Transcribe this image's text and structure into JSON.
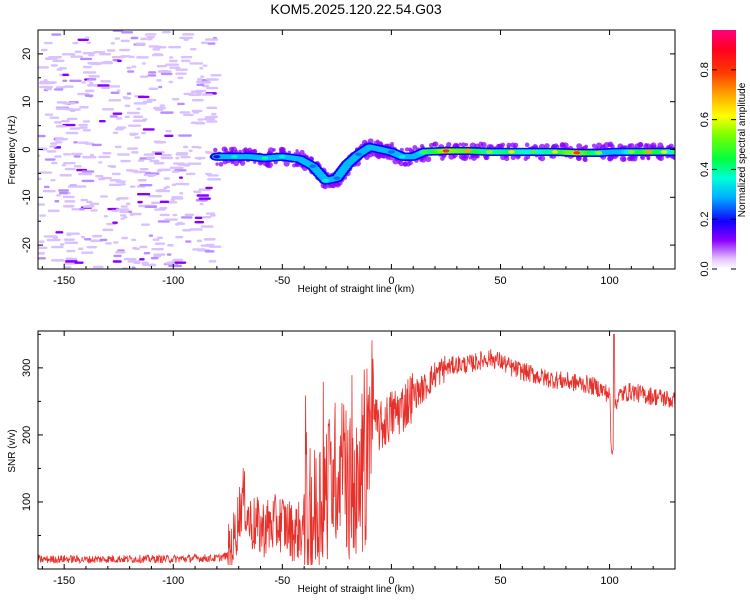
{
  "page_title": "KOM5.2025.120.22.54.G03",
  "chart_data": [
    {
      "type": "heatmap",
      "xlabel": "Height of straight line (km)",
      "ylabel": "Frequency (Hz)",
      "xlim": [
        -162,
        130
      ],
      "ylim": [
        -25,
        25
      ],
      "x_ticks": [
        -150,
        -100,
        -50,
        0,
        50,
        100
      ],
      "y_ticks": [
        -20,
        -10,
        0,
        10,
        20
      ],
      "colorbar": {
        "label": "Normalized spectral amplitude",
        "range": [
          0,
          0.96
        ],
        "ticks": [
          0.0,
          0.2,
          0.4,
          0.6,
          0.8
        ]
      },
      "signal_track": [
        {
          "x": -80,
          "f": -1.5,
          "amp": 0.2
        },
        {
          "x": -72,
          "f": -1.5,
          "amp": 0.35
        },
        {
          "x": -65,
          "f": -1.5,
          "amp": 0.3
        },
        {
          "x": -58,
          "f": -1.8,
          "amp": 0.4
        },
        {
          "x": -50,
          "f": -1.5,
          "amp": 0.35
        },
        {
          "x": -42,
          "f": -2.0,
          "amp": 0.3
        },
        {
          "x": -36,
          "f": -3.5,
          "amp": 0.25
        },
        {
          "x": -30,
          "f": -6.5,
          "amp": 0.35
        },
        {
          "x": -25,
          "f": -6.0,
          "amp": 0.25
        },
        {
          "x": -20,
          "f": -3.0,
          "amp": 0.3
        },
        {
          "x": -15,
          "f": -1.0,
          "amp": 0.25
        },
        {
          "x": -10,
          "f": 0.5,
          "amp": 0.3
        },
        {
          "x": -5,
          "f": 0.0,
          "amp": 0.3
        },
        {
          "x": 0,
          "f": -0.5,
          "amp": 0.25
        },
        {
          "x": 5,
          "f": -1.5,
          "amp": 0.35
        },
        {
          "x": 10,
          "f": -1.5,
          "amp": 0.3
        },
        {
          "x": 15,
          "f": -0.5,
          "amp": 0.5
        },
        {
          "x": 25,
          "f": -0.3,
          "amp": 0.8
        },
        {
          "x": 35,
          "f": -0.3,
          "amp": 0.7
        },
        {
          "x": 45,
          "f": -0.5,
          "amp": 0.55
        },
        {
          "x": 55,
          "f": -0.5,
          "amp": 0.6
        },
        {
          "x": 65,
          "f": -0.5,
          "amp": 0.5
        },
        {
          "x": 75,
          "f": -0.5,
          "amp": 0.6
        },
        {
          "x": 85,
          "f": -0.7,
          "amp": 0.8
        },
        {
          "x": 95,
          "f": -0.7,
          "amp": 0.55
        },
        {
          "x": 102,
          "f": -0.5,
          "amp": 0.3
        },
        {
          "x": 110,
          "f": -0.5,
          "amp": 0.55
        },
        {
          "x": 118,
          "f": -0.5,
          "amp": 0.7
        },
        {
          "x": 125,
          "f": -0.5,
          "amp": 0.6
        },
        {
          "x": 130,
          "f": -0.5,
          "amp": 0.5
        }
      ],
      "noise_region": {
        "x_range": [
          -162,
          -80
        ],
        "f_range": [
          -25,
          25
        ],
        "amp": 0.05
      }
    },
    {
      "type": "line",
      "xlabel": "Height of straight line (km)",
      "ylabel": "SNR (v/v)",
      "xlim": [
        -162,
        130
      ],
      "ylim": [
        0,
        355
      ],
      "x_ticks": [
        -150,
        -100,
        -50,
        0,
        50,
        100
      ],
      "y_ticks": [
        100,
        200,
        300
      ],
      "line_color": "#e8302a",
      "x": [
        -162,
        -150,
        -140,
        -130,
        -120,
        -110,
        -100,
        -90,
        -80,
        -75,
        -72,
        -70,
        -68,
        -65,
        -60,
        -55,
        -50,
        -45,
        -40,
        -35,
        -30,
        -25,
        -22,
        -20,
        -18,
        -15,
        -12,
        -10,
        -8,
        -5,
        0,
        5,
        10,
        15,
        20,
        25,
        30,
        35,
        40,
        45,
        50,
        55,
        60,
        70,
        80,
        90,
        95,
        100,
        101,
        102,
        105,
        110,
        115,
        120,
        125,
        130
      ],
      "y": [
        14,
        15,
        14,
        15,
        15,
        15,
        15,
        16,
        16,
        20,
        45,
        80,
        110,
        70,
        60,
        65,
        70,
        55,
        60,
        80,
        120,
        150,
        160,
        110,
        130,
        100,
        140,
        200,
        220,
        210,
        230,
        240,
        260,
        270,
        290,
        300,
        305,
        305,
        310,
        315,
        310,
        300,
        295,
        285,
        280,
        275,
        270,
        260,
        200,
        245,
        260,
        265,
        260,
        258,
        255,
        250
      ]
    }
  ]
}
